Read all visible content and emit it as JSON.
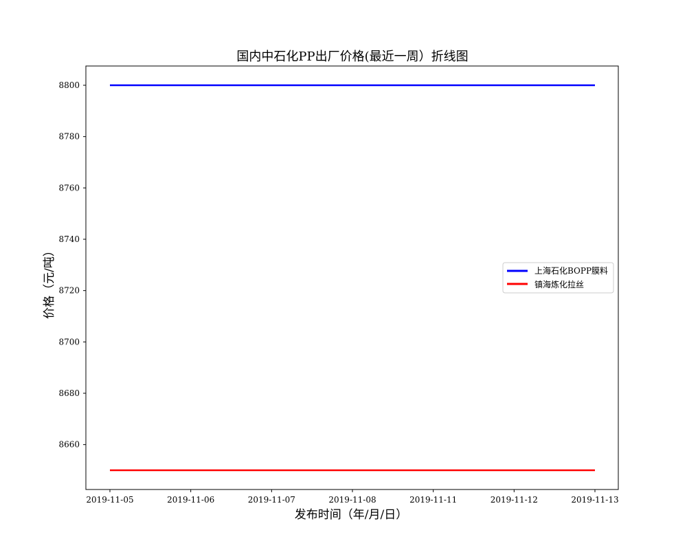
{
  "chart_data": {
    "type": "line",
    "title": "国内中石化PP出厂价格(最近一周）折线图",
    "xlabel": "发布时间（年/月/日）",
    "ylabel": "价格（元/吨）",
    "categories": [
      "2019-11-05",
      "2019-11-06",
      "2019-11-07",
      "2019-11-08",
      "2019-11-11",
      "2019-11-12",
      "2019-11-13"
    ],
    "yticks": [
      8660,
      8680,
      8700,
      8720,
      8740,
      8760,
      8780,
      8800
    ],
    "ylim": [
      8642.5,
      8807.5
    ],
    "grid": false,
    "legend_position": "center-right",
    "series": [
      {
        "name": "上海石化BOPP膜料",
        "color": "#0000ff",
        "values": [
          8800,
          8800,
          8800,
          8800,
          8800,
          8800,
          8800
        ]
      },
      {
        "name": "镇海炼化拉丝",
        "color": "#ff0000",
        "values": [
          8650,
          8650,
          8650,
          8650,
          8650,
          8650,
          8650
        ]
      }
    ]
  }
}
